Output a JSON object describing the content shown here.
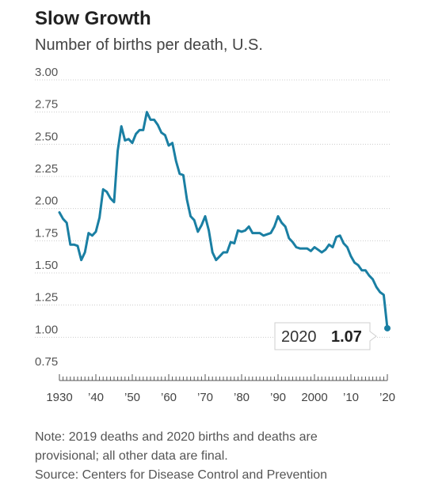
{
  "chart_data": {
    "type": "line",
    "title": "Slow Growth",
    "subtitle": "Number of births per death, U.S.",
    "xlabel": "",
    "ylabel": "",
    "xlim": [
      1930,
      2020
    ],
    "ylim": [
      0.75,
      3.0
    ],
    "y_ticks": [
      "3.00",
      "2.75",
      "2.50",
      "2.25",
      "2.00",
      "1.75",
      "1.50",
      "1.25",
      "1.00",
      "0.75"
    ],
    "x_tick_labels": [
      {
        "year": 1930,
        "label": "1930"
      },
      {
        "year": 1940,
        "label": "’40"
      },
      {
        "year": 1950,
        "label": "’50"
      },
      {
        "year": 1960,
        "label": "’60"
      },
      {
        "year": 1970,
        "label": "’70"
      },
      {
        "year": 1980,
        "label": "’80"
      },
      {
        "year": 1990,
        "label": "’90"
      },
      {
        "year": 2000,
        "label": "2000"
      },
      {
        "year": 2010,
        "label": "’10"
      },
      {
        "year": 2020,
        "label": "’20"
      }
    ],
    "grid": true,
    "line_color": "#1a7fa3",
    "series": [
      {
        "x": [
          1930,
          1931,
          1932,
          1933,
          1934,
          1935,
          1936,
          1937,
          1938,
          1939,
          1940,
          1941,
          1942,
          1943,
          1944,
          1945,
          1946,
          1947,
          1948,
          1949,
          1950,
          1951,
          1952,
          1953,
          1954,
          1955,
          1956,
          1957,
          1958,
          1959,
          1960,
          1961,
          1962,
          1963,
          1964,
          1965,
          1966,
          1967,
          1968,
          1969,
          1970,
          1971,
          1972,
          1973,
          1974,
          1975,
          1976,
          1977,
          1978,
          1979,
          1980,
          1981,
          1982,
          1983,
          1984,
          1985,
          1986,
          1987,
          1988,
          1989,
          1990,
          1991,
          1992,
          1993,
          1994,
          1995,
          1996,
          1997,
          1998,
          1999,
          2000,
          2001,
          2002,
          2003,
          2004,
          2005,
          2006,
          2007,
          2008,
          2009,
          2010,
          2011,
          2012,
          2013,
          2014,
          2015,
          2016,
          2017,
          2018,
          2019,
          2020
        ],
        "values": [
          1.97,
          1.92,
          1.89,
          1.72,
          1.72,
          1.71,
          1.6,
          1.66,
          1.81,
          1.79,
          1.82,
          1.93,
          2.15,
          2.13,
          2.08,
          2.05,
          2.45,
          2.64,
          2.53,
          2.54,
          2.51,
          2.58,
          2.61,
          2.61,
          2.75,
          2.69,
          2.69,
          2.65,
          2.59,
          2.57,
          2.49,
          2.51,
          2.37,
          2.27,
          2.26,
          2.07,
          1.94,
          1.91,
          1.82,
          1.87,
          1.94,
          1.83,
          1.66,
          1.6,
          1.63,
          1.66,
          1.66,
          1.74,
          1.73,
          1.83,
          1.82,
          1.83,
          1.86,
          1.81,
          1.81,
          1.81,
          1.79,
          1.8,
          1.81,
          1.86,
          1.94,
          1.89,
          1.86,
          1.77,
          1.74,
          1.7,
          1.69,
          1.69,
          1.69,
          1.67,
          1.7,
          1.68,
          1.66,
          1.68,
          1.72,
          1.7,
          1.78,
          1.79,
          1.73,
          1.7,
          1.63,
          1.58,
          1.56,
          1.52,
          1.52,
          1.48,
          1.45,
          1.39,
          1.35,
          1.33,
          1.07
        ]
      }
    ],
    "annotation": {
      "year_label": "2020",
      "value_label": "1.07"
    }
  },
  "notes": {
    "line1": "Note: 2019 deaths and 2020 births and deaths are",
    "line2": "provisional; all other data are final.",
    "line3": "Source: Centers for Disease Control and Prevention"
  }
}
